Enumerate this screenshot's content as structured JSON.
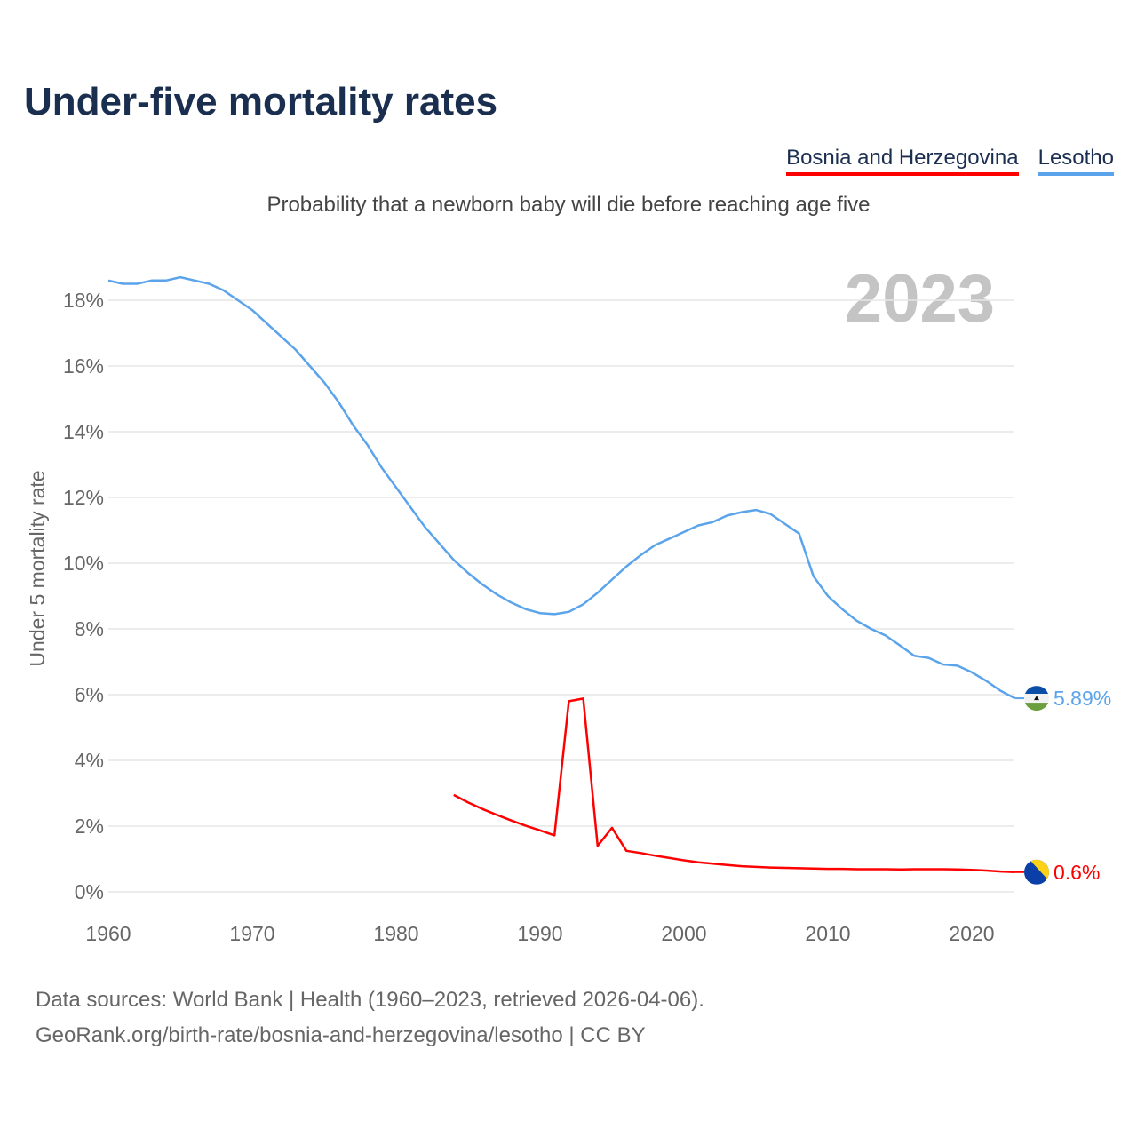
{
  "title": "Under-five mortality rates",
  "subtitle": "Probability that a newborn baby will die before reaching age five",
  "footer": [
    "Data sources: World Bank | Health (1960–2023, retrieved 2026-04-06).",
    "GeoRank.org/birth-rate/bosnia-and-herzegovina/lesotho | CC BY"
  ],
  "chart_data": {
    "type": "line",
    "title": "Under-five mortality rates",
    "ylabel": "Under 5 mortality rate",
    "xlabel": "",
    "year_label": "2023",
    "xlim": [
      1960,
      2023
    ],
    "ylim": [
      0,
      18
    ],
    "xticks": [
      "1960",
      "1970",
      "1980",
      "1990",
      "2000",
      "2010",
      "2020"
    ],
    "yticks": [
      "0%",
      "2%",
      "4%",
      "6%",
      "8%",
      "10%",
      "12%",
      "14%",
      "16%",
      "18%"
    ],
    "grid": true,
    "legend_position": "top-right",
    "series": [
      {
        "name": "Bosnia and Herzegovina",
        "color": "#ff0000",
        "end_label": "0.6%",
        "start_year": 1984,
        "values": [
          2.95,
          2.72,
          2.52,
          2.34,
          2.17,
          2.01,
          1.87,
          1.72,
          5.8,
          5.88,
          1.4,
          1.95,
          1.25,
          1.18,
          1.1,
          1.03,
          0.96,
          0.9,
          0.86,
          0.82,
          0.78,
          0.76,
          0.74,
          0.73,
          0.72,
          0.71,
          0.7,
          0.7,
          0.69,
          0.69,
          0.69,
          0.68,
          0.69,
          0.69,
          0.69,
          0.68,
          0.67,
          0.65,
          0.62,
          0.6
        ]
      },
      {
        "name": "Lesotho",
        "color": "#5ba4ec",
        "end_label": "5.89%",
        "start_year": 1960,
        "values": [
          18.6,
          18.5,
          18.5,
          18.6,
          18.6,
          18.7,
          18.6,
          18.5,
          18.3,
          18.0,
          17.7,
          17.3,
          16.9,
          16.5,
          16.0,
          15.5,
          14.9,
          14.2,
          13.6,
          12.9,
          12.3,
          11.7,
          11.1,
          10.6,
          10.1,
          9.7,
          9.35,
          9.05,
          8.8,
          8.6,
          8.48,
          8.45,
          8.52,
          8.75,
          9.1,
          9.5,
          9.9,
          10.25,
          10.55,
          10.75,
          10.95,
          11.15,
          11.25,
          11.45,
          11.55,
          11.62,
          11.5,
          11.2,
          10.9,
          9.6,
          9.0,
          8.6,
          8.25,
          8.0,
          7.8,
          7.5,
          7.18,
          7.12,
          6.92,
          6.88,
          6.68,
          6.42,
          6.12,
          5.89
        ]
      }
    ]
  }
}
